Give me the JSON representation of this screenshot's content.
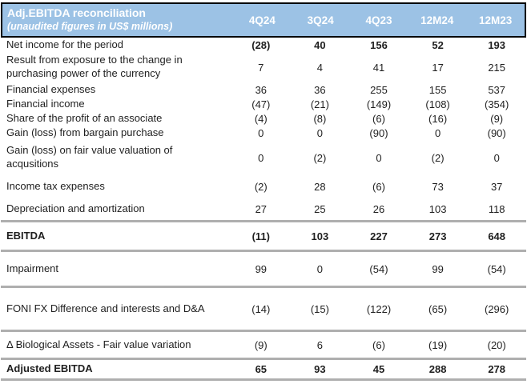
{
  "header": {
    "title": "Adj.EBITDA reconciliation",
    "subtitle": "(unaudited figures in US$ millions)",
    "columns": [
      "4Q24",
      "3Q24",
      "4Q23",
      "12M24",
      "12M23"
    ]
  },
  "colors": {
    "header_bg": "#9CC2E5",
    "header_text": "#FFFFFF",
    "header_border": "#000000",
    "separator": "#AFAFAF",
    "body_text": "#1F1F1F"
  },
  "rows": [
    {
      "label": "Net income for the period",
      "values": [
        "(28)",
        "40",
        "156",
        "52",
        "193"
      ]
    },
    {
      "label": "Result from exposure to the change in purchasing power of the currency",
      "values": [
        "7",
        "4",
        "41",
        "17",
        "215"
      ]
    },
    {
      "label": "Financial expenses",
      "values": [
        "36",
        "36",
        "255",
        "155",
        "537"
      ]
    },
    {
      "label": "Financial income",
      "values": [
        "(47)",
        "(21)",
        "(149)",
        "(108)",
        "(354)"
      ]
    },
    {
      "label": "Share of the profit of an associate",
      "values": [
        "(4)",
        "(8)",
        "(6)",
        "(16)",
        "(9)"
      ]
    },
    {
      "label": "Gain (loss) from bargain purchase",
      "values": [
        "0",
        "0",
        "(90)",
        "0",
        "(90)"
      ]
    },
    {
      "label": "Gain (loss) on fair value valuation of acqusitions",
      "values": [
        "0",
        "(2)",
        "0",
        "(2)",
        "0"
      ]
    },
    {
      "label": "Income tax expenses",
      "values": [
        "(2)",
        "28",
        "(6)",
        "73",
        "37"
      ]
    },
    {
      "label": "Depreciation and amortization",
      "values": [
        "27",
        "25",
        "26",
        "103",
        "118"
      ]
    },
    {
      "label": "EBITDA",
      "values": [
        "(11)",
        "103",
        "227",
        "273",
        "648"
      ]
    },
    {
      "label": "Impairment",
      "values": [
        "99",
        "0",
        "(54)",
        "99",
        "(54)"
      ]
    },
    {
      "label": "FONI FX Difference and interests and D&A",
      "values": [
        "(14)",
        "(15)",
        "(122)",
        "(65)",
        "(296)"
      ]
    },
    {
      "label": "Δ Biological Assets - Fair value variation",
      "values": [
        "(9)",
        "6",
        "(6)",
        "(19)",
        "(20)"
      ]
    },
    {
      "label": "Adjusted EBITDA",
      "values": [
        "65",
        "93",
        "45",
        "288",
        "278"
      ]
    }
  ]
}
